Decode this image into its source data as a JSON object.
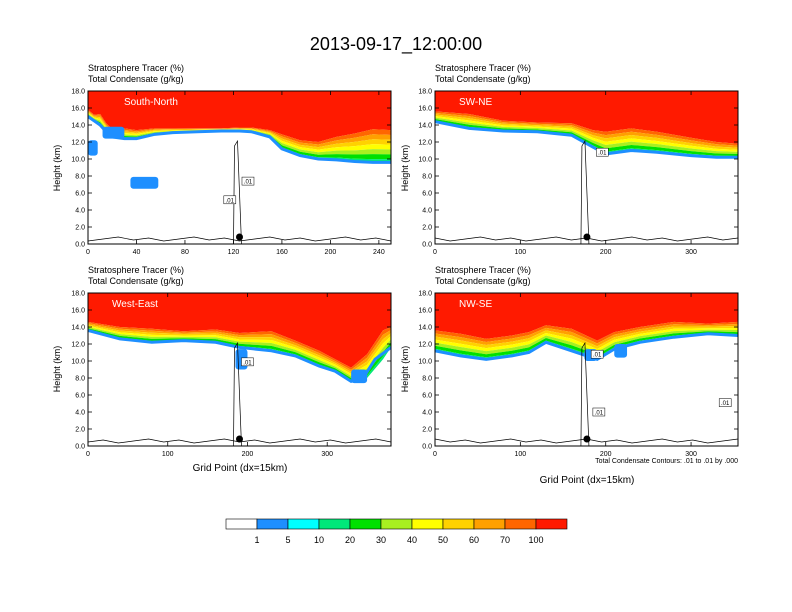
{
  "title": "2013-09-17_12:00:00",
  "colorbar": {
    "labels": [
      "1",
      "5",
      "10",
      "20",
      "30",
      "40",
      "50",
      "60",
      "70",
      "100"
    ],
    "colors": [
      "#ffffff",
      "#1e8fff",
      "#00ffff",
      "#00e87a",
      "#00e000",
      "#a8f020",
      "#ffff00",
      "#ffd200",
      "#ffa000",
      "#ff6600",
      "#ff1a00"
    ]
  },
  "contour_note": "Total Condensate Contours: .01 to .01 by .000",
  "chart_data": [
    {
      "type": "heatmap",
      "panel": "South-North",
      "label": "South-North",
      "title_lines": [
        "Stratosphere Tracer   (%)",
        "Total Condensate   (g/kg)"
      ],
      "ylabel": "Height (km)",
      "xlabel": "",
      "xlim": [
        0,
        250
      ],
      "ylim": [
        0,
        18
      ],
      "xticks": [
        0,
        40,
        80,
        120,
        160,
        200,
        240
      ],
      "yticks": [
        "0.0",
        "2.0",
        "4.0",
        "6.0",
        "8.0",
        "10.0",
        "12.0",
        "14.0",
        "16.0",
        "18.0"
      ],
      "marker_x": 125,
      "tropopause_top": [
        [
          0,
          15.8
        ],
        [
          5,
          15.2
        ],
        [
          10,
          15.3
        ],
        [
          15,
          14.2
        ],
        [
          20,
          13.5
        ],
        [
          30,
          13.6
        ],
        [
          40,
          13.4
        ],
        [
          55,
          13.6
        ],
        [
          70,
          13.6
        ],
        [
          90,
          13.6
        ],
        [
          110,
          13.6
        ],
        [
          125,
          13.7
        ],
        [
          135,
          13.7
        ],
        [
          150,
          13.4
        ],
        [
          160,
          12.9
        ],
        [
          175,
          12.2
        ],
        [
          190,
          12.0
        ],
        [
          205,
          12.6
        ],
        [
          220,
          13.0
        ],
        [
          235,
          13.5
        ],
        [
          250,
          13.4
        ]
      ],
      "tropopause_base": [
        [
          0,
          15.0
        ],
        [
          5,
          14.5
        ],
        [
          10,
          14.0
        ],
        [
          15,
          13.2
        ],
        [
          20,
          12.6
        ],
        [
          30,
          12.4
        ],
        [
          40,
          12.4
        ],
        [
          55,
          12.9
        ],
        [
          70,
          13.1
        ],
        [
          90,
          13.2
        ],
        [
          110,
          13.3
        ],
        [
          125,
          13.3
        ],
        [
          135,
          13.2
        ],
        [
          150,
          12.6
        ],
        [
          160,
          11.2
        ],
        [
          175,
          10.4
        ],
        [
          190,
          10.0
        ],
        [
          205,
          9.9
        ],
        [
          220,
          9.7
        ],
        [
          235,
          9.6
        ],
        [
          250,
          9.6
        ]
      ],
      "blue_patches": [
        {
          "x0": 12,
          "x1": 30,
          "y0": 12.4,
          "y1": 13.8
        },
        {
          "x0": 35,
          "x1": 58,
          "y0": 6.5,
          "y1": 7.9
        },
        {
          "x0": 0,
          "x1": 8,
          "y0": 10.4,
          "y1": 12.2
        }
      ],
      "contour_labels": [
        {
          "x": 132,
          "y": 7.4,
          "text": ".01"
        },
        {
          "x": 117,
          "y": 5.2,
          "text": ".01"
        }
      ]
    },
    {
      "type": "heatmap",
      "panel": "SW-NE",
      "label": "SW-NE",
      "title_lines": [
        "Stratosphere Tracer   (%)",
        "Total Condensate   (g/kg)"
      ],
      "ylabel": "Height (km)",
      "xlabel": "",
      "xlim": [
        0,
        355
      ],
      "ylim": [
        0,
        18
      ],
      "xticks": [
        0,
        100,
        200,
        300
      ],
      "yticks": [
        "0.0",
        "2.0",
        "4.0",
        "6.0",
        "8.0",
        "10.0",
        "12.0",
        "14.0",
        "16.0",
        "18.0"
      ],
      "marker_x": 178,
      "tropopause_top": [
        [
          0,
          15.6
        ],
        [
          40,
          15.3
        ],
        [
          80,
          14.5
        ],
        [
          120,
          14.3
        ],
        [
          160,
          14.2
        ],
        [
          185,
          13.4
        ],
        [
          200,
          13.2
        ],
        [
          230,
          13.6
        ],
        [
          260,
          13.2
        ],
        [
          300,
          12.5
        ],
        [
          330,
          12.0
        ],
        [
          355,
          11.8
        ]
      ],
      "tropopause_base": [
        [
          0,
          14.4
        ],
        [
          40,
          13.6
        ],
        [
          80,
          13.3
        ],
        [
          120,
          13.2
        ],
        [
          160,
          12.8
        ],
        [
          185,
          11.4
        ],
        [
          200,
          10.6
        ],
        [
          230,
          11.0
        ],
        [
          260,
          10.8
        ],
        [
          300,
          10.4
        ],
        [
          330,
          10.2
        ],
        [
          355,
          10.2
        ]
      ],
      "blue_patches": [],
      "contour_labels": [
        {
          "x": 196,
          "y": 10.8,
          "text": ".01"
        }
      ]
    },
    {
      "type": "heatmap",
      "panel": "West-East",
      "label": "West-East",
      "title_lines": [
        "Stratosphere Tracer   (%)",
        "Total Condensate   (g/kg)"
      ],
      "ylabel": "Height (km)",
      "xlabel": "Grid Point (dx=15km)",
      "xlim": [
        0,
        380
      ],
      "ylim": [
        0,
        18
      ],
      "xticks": [
        0,
        100,
        200,
        300
      ],
      "yticks": [
        "0.0",
        "2.0",
        "4.0",
        "6.0",
        "8.0",
        "10.0",
        "12.0",
        "14.0",
        "16.0",
        "18.0"
      ],
      "marker_x": 190,
      "tropopause_top": [
        [
          0,
          14.6
        ],
        [
          40,
          14.0
        ],
        [
          80,
          13.8
        ],
        [
          120,
          13.5
        ],
        [
          160,
          13.7
        ],
        [
          190,
          13.3
        ],
        [
          230,
          13.5
        ],
        [
          260,
          12.4
        ],
        [
          290,
          11.2
        ],
        [
          310,
          10.2
        ],
        [
          330,
          9.2
        ],
        [
          350,
          10.8
        ],
        [
          370,
          13.6
        ],
        [
          380,
          14.0
        ]
      ],
      "tropopause_base": [
        [
          0,
          13.6
        ],
        [
          40,
          12.6
        ],
        [
          80,
          12.2
        ],
        [
          120,
          12.4
        ],
        [
          160,
          12.2
        ],
        [
          190,
          11.6
        ],
        [
          230,
          11.2
        ],
        [
          260,
          10.6
        ],
        [
          290,
          9.4
        ],
        [
          310,
          8.8
        ],
        [
          330,
          7.6
        ],
        [
          345,
          8.0
        ],
        [
          360,
          10.2
        ],
        [
          380,
          11.6
        ]
      ],
      "blue_patches": [
        {
          "x0": 185,
          "x1": 200,
          "y0": 9.0,
          "y1": 11.4
        },
        {
          "x0": 330,
          "x1": 350,
          "y0": 7.4,
          "y1": 9.0
        }
      ],
      "contour_labels": [
        {
          "x": 200,
          "y": 9.9,
          "text": ".01"
        }
      ]
    },
    {
      "type": "heatmap",
      "panel": "NW-SE",
      "label": "NW-SE",
      "title_lines": [
        "Stratosphere Tracer   (%)",
        "Total Condensate   (g/kg)"
      ],
      "ylabel": "Height (km)",
      "xlabel": "Grid Point (dx=15km)",
      "xlim": [
        0,
        355
      ],
      "ylim": [
        0,
        18
      ],
      "xticks": [
        0,
        100,
        200,
        300
      ],
      "yticks": [
        "0.0",
        "2.0",
        "4.0",
        "6.0",
        "8.0",
        "10.0",
        "12.0",
        "14.0",
        "16.0",
        "18.0"
      ],
      "marker_x": 178,
      "tropopause_top": [
        [
          0,
          13.6
        ],
        [
          30,
          13.2
        ],
        [
          60,
          12.6
        ],
        [
          90,
          13.0
        ],
        [
          110,
          13.4
        ],
        [
          130,
          14.2
        ],
        [
          160,
          13.8
        ],
        [
          190,
          12.4
        ],
        [
          210,
          13.4
        ],
        [
          240,
          14.0
        ],
        [
          280,
          14.6
        ],
        [
          320,
          14.4
        ],
        [
          355,
          14.6
        ]
      ],
      "tropopause_base": [
        [
          0,
          11.2
        ],
        [
          30,
          10.6
        ],
        [
          60,
          10.2
        ],
        [
          90,
          10.6
        ],
        [
          110,
          11.0
        ],
        [
          130,
          12.2
        ],
        [
          160,
          11.2
        ],
        [
          190,
          10.2
        ],
        [
          210,
          11.4
        ],
        [
          240,
          12.2
        ],
        [
          280,
          12.8
        ],
        [
          320,
          13.2
        ],
        [
          355,
          13.0
        ]
      ],
      "blue_patches": [
        {
          "x0": 175,
          "x1": 190,
          "y0": 10.0,
          "y1": 11.4
        },
        {
          "x0": 210,
          "x1": 225,
          "y0": 10.4,
          "y1": 12.0
        }
      ],
      "contour_labels": [
        {
          "x": 190,
          "y": 10.8,
          "text": ".01"
        },
        {
          "x": 192,
          "y": 4.0,
          "text": ".01"
        },
        {
          "x": 340,
          "y": 5.1,
          "text": ".01"
        }
      ]
    }
  ]
}
